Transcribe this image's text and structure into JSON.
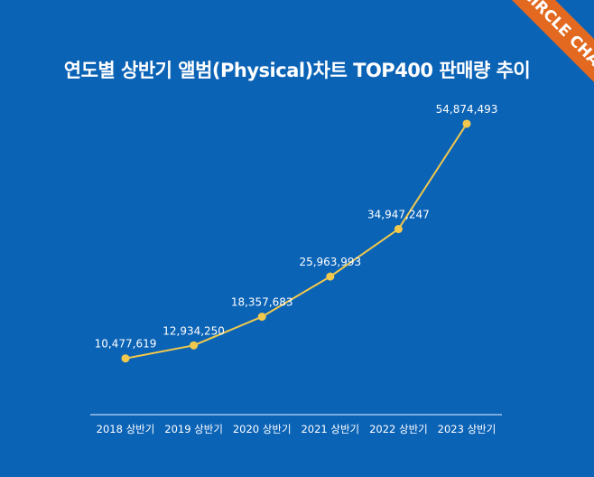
{
  "title": "연도별 상반기 앨범(Physical)차트 TOP400 판매량 추이",
  "logo_text": "CIRCLE CHART",
  "colors": {
    "background": "#0b63b6",
    "line": "#f2c94c",
    "banner": "#e2691f"
  },
  "chart_data": {
    "type": "line",
    "title": "연도별 상반기 앨범(Physical)차트 TOP400 판매량 추이",
    "categories": [
      "2018 상반기",
      "2019 상반기",
      "2020 상반기",
      "2021 상반기",
      "2022 상반기",
      "2023 상반기"
    ],
    "values": [
      10477619,
      12934250,
      18357683,
      25963993,
      34947247,
      54874493
    ],
    "data_labels": [
      "10,477,619",
      "12,934,250",
      "18,357,683",
      "25,963,993",
      "34,947,247",
      "54,874,493"
    ],
    "xlabel": "",
    "ylabel": "",
    "ylim": [
      0,
      60000000
    ],
    "grid": false,
    "y_axis_visible": false
  }
}
